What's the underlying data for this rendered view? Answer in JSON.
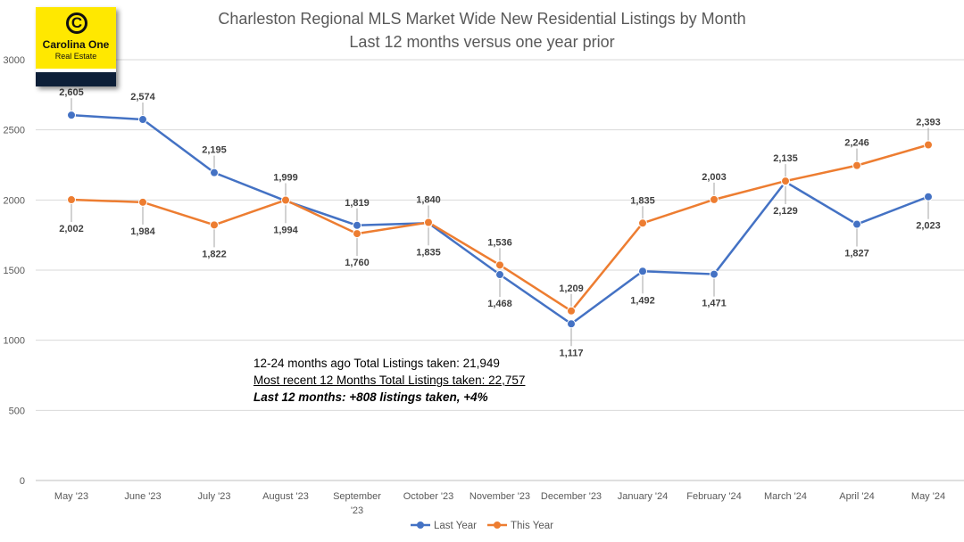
{
  "chart_data": {
    "type": "line",
    "title": "Charleston Regional MLS Market Wide New Residential Listings by Month",
    "subtitle": "Last 12 months versus one year prior",
    "categories": [
      "May '23",
      "June '23",
      "July '23",
      "August '23",
      "September '23",
      "October '23",
      "November '23",
      "December '23",
      "January '24",
      "February '24",
      "March '24",
      "April '24",
      "May '24"
    ],
    "series": [
      {
        "name": "Last Year",
        "color": "#4472c4",
        "values": [
          2605,
          2574,
          2195,
          1994,
          1819,
          1835,
          1468,
          1117,
          1492,
          1471,
          2129,
          1827,
          2023
        ]
      },
      {
        "name": "This Year",
        "color": "#ed7d31",
        "values": [
          2002,
          1984,
          1822,
          1999,
          1760,
          1840,
          1536,
          1209,
          1835,
          2003,
          2135,
          2246,
          2393
        ]
      }
    ],
    "ylim": [
      0,
      3000
    ],
    "yticks": [
      0,
      500,
      1000,
      1500,
      2000,
      2500,
      3000
    ],
    "grid": true,
    "legend_position": "bottom"
  },
  "logo": {
    "name": "Carolina One",
    "sub": "Real Estate",
    "mark": "C"
  },
  "notes": {
    "line1": "12-24 months ago Total Listings taken: 21,949",
    "line2": "Most recent 12 Months Total Listings taken: 22,757",
    "line3": "Last 12 months: +808 listings taken, +4%"
  }
}
